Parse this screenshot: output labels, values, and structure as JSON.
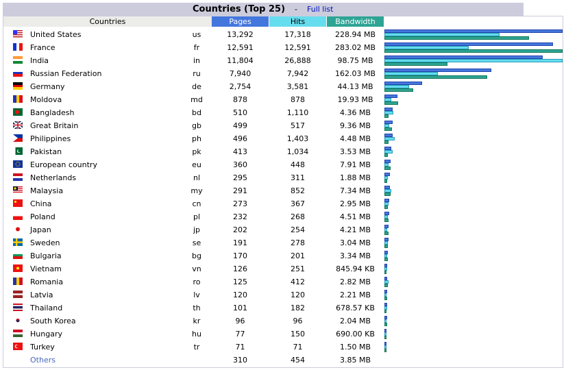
{
  "title": "Countries (Top 25)",
  "separator": "-",
  "full_list_label": "Full list",
  "headers": {
    "countries": "Countries",
    "pages": "Pages",
    "hits": "Hits",
    "bandwidth": "Bandwidth"
  },
  "rows": [
    {
      "flag": "us-flag-icon",
      "name": "United States",
      "code": "us",
      "pages": "13,292",
      "hits": "17,318",
      "bw": "228.94 MB",
      "p": 13292,
      "h": 17318,
      "b": 228.94
    },
    {
      "flag": "fr-flag-icon",
      "name": "France",
      "code": "fr",
      "pages": "12,591",
      "hits": "12,591",
      "bw": "283.02 MB",
      "p": 12591,
      "h": 12591,
      "b": 283.02
    },
    {
      "flag": "in-flag-icon",
      "name": "India",
      "code": "in",
      "pages": "11,804",
      "hits": "26,888",
      "bw": "98.75 MB",
      "p": 11804,
      "h": 26888,
      "b": 98.75
    },
    {
      "flag": "ru-flag-icon",
      "name": "Russian Federation",
      "code": "ru",
      "pages": "7,940",
      "hits": "7,942",
      "bw": "162.03 MB",
      "p": 7940,
      "h": 7942,
      "b": 162.03
    },
    {
      "flag": "de-flag-icon",
      "name": "Germany",
      "code": "de",
      "pages": "2,754",
      "hits": "3,581",
      "bw": "44.13 MB",
      "p": 2754,
      "h": 3581,
      "b": 44.13
    },
    {
      "flag": "md-flag-icon",
      "name": "Moldova",
      "code": "md",
      "pages": "878",
      "hits": "878",
      "bw": "19.93 MB",
      "p": 878,
      "h": 878,
      "b": 19.93
    },
    {
      "flag": "bd-flag-icon",
      "name": "Bangladesh",
      "code": "bd",
      "pages": "510",
      "hits": "1,110",
      "bw": "4.36 MB",
      "p": 510,
      "h": 1110,
      "b": 4.36
    },
    {
      "flag": "gb-flag-icon",
      "name": "Great Britain",
      "code": "gb",
      "pages": "499",
      "hits": "517",
      "bw": "9.36 MB",
      "p": 499,
      "h": 517,
      "b": 9.36
    },
    {
      "flag": "ph-flag-icon",
      "name": "Philippines",
      "code": "ph",
      "pages": "496",
      "hits": "1,403",
      "bw": "4.48 MB",
      "p": 496,
      "h": 1403,
      "b": 4.48
    },
    {
      "flag": "pk-flag-icon",
      "name": "Pakistan",
      "code": "pk",
      "pages": "413",
      "hits": "1,034",
      "bw": "3.53 MB",
      "p": 413,
      "h": 1034,
      "b": 3.53
    },
    {
      "flag": "eu-flag-icon",
      "name": "European country",
      "code": "eu",
      "pages": "360",
      "hits": "448",
      "bw": "7.91 MB",
      "p": 360,
      "h": 448,
      "b": 7.91
    },
    {
      "flag": "nl-flag-icon",
      "name": "Netherlands",
      "code": "nl",
      "pages": "295",
      "hits": "311",
      "bw": "1.88 MB",
      "p": 295,
      "h": 311,
      "b": 1.88
    },
    {
      "flag": "my-flag-icon",
      "name": "Malaysia",
      "code": "my",
      "pages": "291",
      "hits": "852",
      "bw": "7.34 MB",
      "p": 291,
      "h": 852,
      "b": 7.34
    },
    {
      "flag": "cn-flag-icon",
      "name": "China",
      "code": "cn",
      "pages": "273",
      "hits": "367",
      "bw": "2.95 MB",
      "p": 273,
      "h": 367,
      "b": 2.95
    },
    {
      "flag": "pl-flag-icon",
      "name": "Poland",
      "code": "pl",
      "pages": "232",
      "hits": "268",
      "bw": "4.51 MB",
      "p": 232,
      "h": 268,
      "b": 4.51
    },
    {
      "flag": "jp-flag-icon",
      "name": "Japan",
      "code": "jp",
      "pages": "202",
      "hits": "254",
      "bw": "4.21 MB",
      "p": 202,
      "h": 254,
      "b": 4.21
    },
    {
      "flag": "se-flag-icon",
      "name": "Sweden",
      "code": "se",
      "pages": "191",
      "hits": "278",
      "bw": "3.04 MB",
      "p": 191,
      "h": 278,
      "b": 3.04
    },
    {
      "flag": "bg-flag-icon",
      "name": "Bulgaria",
      "code": "bg",
      "pages": "170",
      "hits": "201",
      "bw": "3.34 MB",
      "p": 170,
      "h": 201,
      "b": 3.34
    },
    {
      "flag": "vn-flag-icon",
      "name": "Vietnam",
      "code": "vn",
      "pages": "126",
      "hits": "251",
      "bw": "845.94 KB",
      "p": 126,
      "h": 251,
      "b": 0.83
    },
    {
      "flag": "ro-flag-icon",
      "name": "Romania",
      "code": "ro",
      "pages": "125",
      "hits": "412",
      "bw": "2.82 MB",
      "p": 125,
      "h": 412,
      "b": 2.82
    },
    {
      "flag": "lv-flag-icon",
      "name": "Latvia",
      "code": "lv",
      "pages": "120",
      "hits": "120",
      "bw": "2.21 MB",
      "p": 120,
      "h": 120,
      "b": 2.21
    },
    {
      "flag": "th-flag-icon",
      "name": "Thailand",
      "code": "th",
      "pages": "101",
      "hits": "182",
      "bw": "678.57 KB",
      "p": 101,
      "h": 182,
      "b": 0.66
    },
    {
      "flag": "kr-flag-icon",
      "name": "South Korea",
      "code": "kr",
      "pages": "96",
      "hits": "96",
      "bw": "2.04 MB",
      "p": 96,
      "h": 96,
      "b": 2.04
    },
    {
      "flag": "hu-flag-icon",
      "name": "Hungary",
      "code": "hu",
      "pages": "77",
      "hits": "150",
      "bw": "690.00 KB",
      "p": 77,
      "h": 150,
      "b": 0.67
    },
    {
      "flag": "tr-flag-icon",
      "name": "Turkey",
      "code": "tr",
      "pages": "71",
      "hits": "71",
      "bw": "1.50 MB",
      "p": 71,
      "h": 71,
      "b": 1.5
    }
  ],
  "others": {
    "name": "Others",
    "pages": "310",
    "hits": "454",
    "bw": "3.85 MB"
  },
  "colors": {
    "pages": "#4477dd",
    "hits": "#66ddee",
    "bandwidth": "#2ea495",
    "header_bg": "#ccccdd"
  }
}
